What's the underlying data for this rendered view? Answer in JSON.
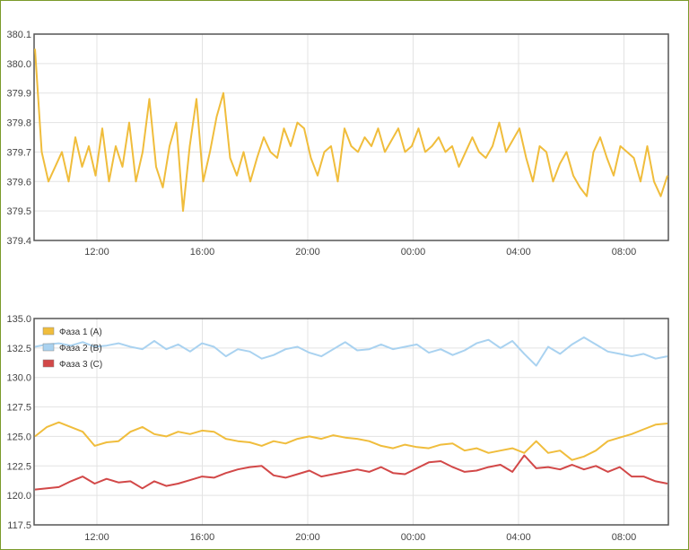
{
  "chart_data": [
    {
      "type": "line",
      "ylim": [
        379.4,
        380.1
      ],
      "y_ticks": [
        "380.1",
        "380.0",
        "379.9",
        "379.8",
        "379.7",
        "379.6",
        "379.5",
        "379.4"
      ],
      "x_ticks": [
        "12:00",
        "16:00",
        "20:00",
        "00:00",
        "04:00",
        "08:00"
      ],
      "grid": true,
      "series": [
        {
          "color": "#f0bd3c",
          "values": [
            380.05,
            379.7,
            379.6,
            379.65,
            379.7,
            379.6,
            379.75,
            379.65,
            379.72,
            379.62,
            379.78,
            379.6,
            379.72,
            379.65,
            379.8,
            379.6,
            379.7,
            379.88,
            379.65,
            379.58,
            379.72,
            379.8,
            379.5,
            379.72,
            379.88,
            379.6,
            379.7,
            379.82,
            379.9,
            379.68,
            379.62,
            379.7,
            379.6,
            379.68,
            379.75,
            379.7,
            379.68,
            379.78,
            379.72,
            379.8,
            379.78,
            379.68,
            379.62,
            379.7,
            379.72,
            379.6,
            379.78,
            379.72,
            379.7,
            379.75,
            379.72,
            379.78,
            379.7,
            379.74,
            379.78,
            379.7,
            379.72,
            379.78,
            379.7,
            379.72,
            379.75,
            379.7,
            379.72,
            379.65,
            379.7,
            379.75,
            379.7,
            379.68,
            379.72,
            379.8,
            379.7,
            379.74,
            379.78,
            379.68,
            379.6,
            379.72,
            379.7,
            379.6,
            379.66,
            379.7,
            379.62,
            379.58,
            379.55,
            379.7,
            379.75,
            379.68,
            379.62,
            379.72,
            379.7,
            379.68,
            379.6,
            379.72,
            379.6,
            379.55,
            379.62
          ]
        }
      ]
    },
    {
      "type": "line",
      "ylim": [
        117.5,
        135.0
      ],
      "y_ticks": [
        "135.0",
        "132.5",
        "130.0",
        "127.5",
        "125.0",
        "122.5",
        "120.0",
        "117.5"
      ],
      "x_ticks": [
        "12:00",
        "16:00",
        "20:00",
        "00:00",
        "04:00",
        "08:00"
      ],
      "grid": true,
      "legend_position": "top-left",
      "series": [
        {
          "name": "Фаза 1 (А)",
          "color": "#f0bd3c",
          "values": [
            125.0,
            125.8,
            126.2,
            125.8,
            125.4,
            124.2,
            124.5,
            124.6,
            125.4,
            125.8,
            125.2,
            125.0,
            125.4,
            125.2,
            125.5,
            125.4,
            124.8,
            124.6,
            124.5,
            124.2,
            124.6,
            124.4,
            124.8,
            125.0,
            124.8,
            125.1,
            124.9,
            124.8,
            124.6,
            124.2,
            124.0,
            124.3,
            124.1,
            124.0,
            124.3,
            124.4,
            123.8,
            124.0,
            123.6,
            123.8,
            124.0,
            123.6,
            124.6,
            123.6,
            123.8,
            123.0,
            123.3,
            123.8,
            124.6,
            124.9,
            125.2,
            125.6,
            126.0,
            126.1
          ]
        },
        {
          "name": "Фаза 2 (В)",
          "color": "#a9d2f0",
          "values": [
            132.6,
            132.8,
            132.9,
            132.7,
            133.0,
            132.6,
            132.7,
            132.9,
            132.6,
            132.4,
            133.1,
            132.4,
            132.8,
            132.2,
            132.9,
            132.6,
            131.8,
            132.4,
            132.2,
            131.6,
            131.9,
            132.4,
            132.6,
            132.1,
            131.8,
            132.4,
            133.0,
            132.3,
            132.4,
            132.8,
            132.4,
            132.6,
            132.8,
            132.1,
            132.4,
            131.9,
            132.3,
            132.9,
            133.2,
            132.5,
            133.1,
            132.0,
            131.0,
            132.6,
            132.0,
            132.8,
            133.4,
            132.8,
            132.2,
            132.0,
            131.8,
            132.0,
            131.6,
            131.8
          ]
        },
        {
          "name": "Фаза 3 (С)",
          "color": "#d24848",
          "values": [
            120.5,
            120.6,
            120.7,
            121.2,
            121.6,
            121.0,
            121.4,
            121.1,
            121.2,
            120.6,
            121.2,
            120.8,
            121.0,
            121.3,
            121.6,
            121.5,
            121.9,
            122.2,
            122.4,
            122.5,
            121.7,
            121.5,
            121.8,
            122.1,
            121.6,
            121.8,
            122.0,
            122.2,
            122.0,
            122.4,
            121.9,
            121.8,
            122.3,
            122.8,
            122.9,
            122.4,
            122.0,
            122.1,
            122.4,
            122.6,
            122.0,
            123.4,
            122.3,
            122.4,
            122.2,
            122.6,
            122.2,
            122.5,
            122.0,
            122.4,
            121.6,
            121.6,
            121.2,
            121.0
          ]
        }
      ]
    }
  ]
}
